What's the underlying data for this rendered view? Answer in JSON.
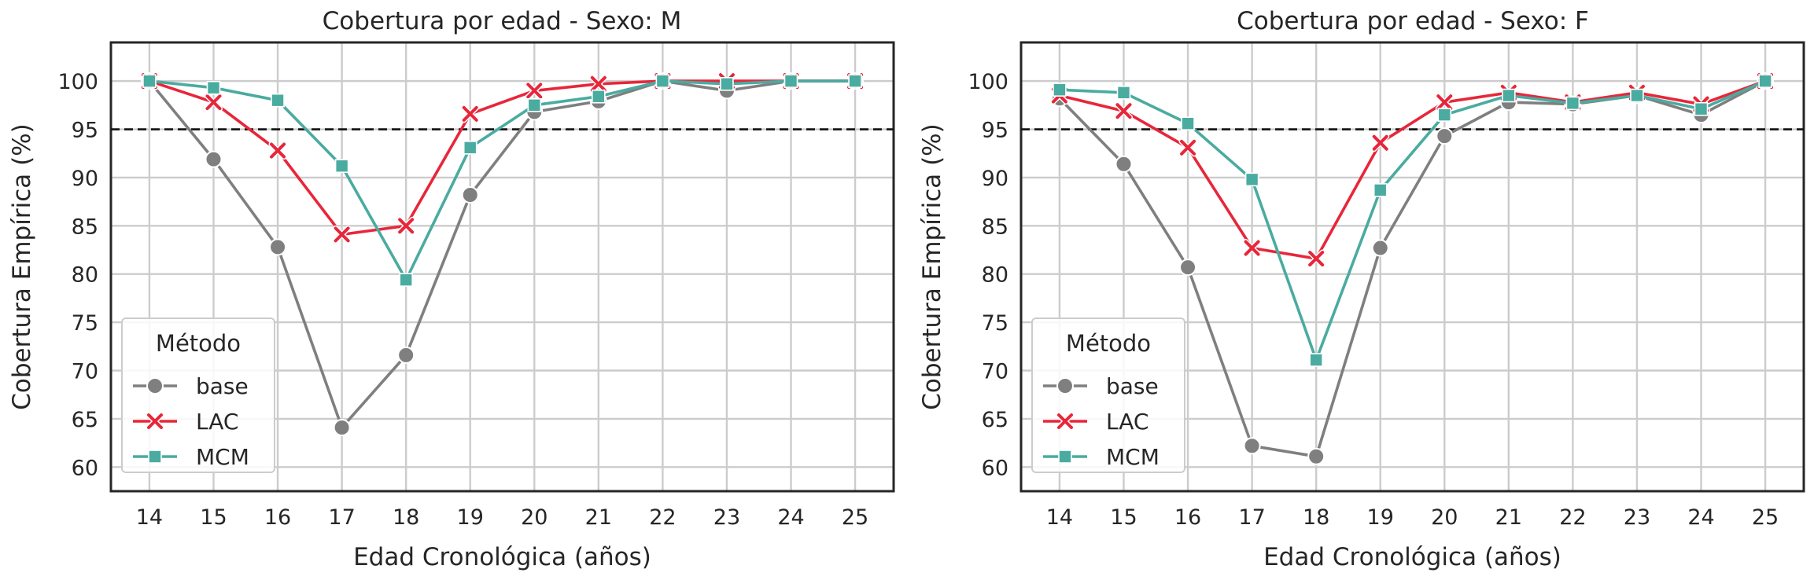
{
  "chart_data": [
    {
      "type": "line",
      "title": "Cobertura por edad - Sexo: M",
      "xlabel": "Edad Cronológica (años)",
      "ylabel": "Cobertura Empírica (%)",
      "x": [
        14,
        15,
        16,
        17,
        18,
        19,
        20,
        21,
        22,
        23,
        24,
        25
      ],
      "xlim": [
        13.4,
        25.6
      ],
      "ylim": [
        57.5,
        104
      ],
      "yticks": [
        60,
        65,
        70,
        75,
        80,
        85,
        90,
        95,
        100
      ],
      "grid": true,
      "reference_line": {
        "y": 95,
        "style": "dashed",
        "color": "#111111"
      },
      "legend": {
        "title": "Método",
        "position": "lower-left"
      },
      "series": [
        {
          "name": "base",
          "color": "#7f7f7f",
          "marker": "circle",
          "values": [
            100,
            91.9,
            82.8,
            64.1,
            71.6,
            88.2,
            96.8,
            97.9,
            100,
            99.0,
            100,
            100
          ]
        },
        {
          "name": "LAC",
          "color": "#e8263a",
          "marker": "x",
          "values": [
            100,
            97.8,
            92.8,
            84.1,
            85.0,
            96.6,
            99.0,
            99.7,
            100,
            100,
            100,
            100
          ]
        },
        {
          "name": "MCM",
          "color": "#4aaba0",
          "marker": "square",
          "values": [
            100,
            99.3,
            98.0,
            91.2,
            79.4,
            93.1,
            97.5,
            98.4,
            100,
            99.7,
            100,
            100
          ]
        }
      ]
    },
    {
      "type": "line",
      "title": "Cobertura por edad - Sexo: F",
      "xlabel": "Edad Cronológica (años)",
      "ylabel": "Cobertura Empírica (%)",
      "x": [
        14,
        15,
        16,
        17,
        18,
        19,
        20,
        21,
        22,
        23,
        24,
        25
      ],
      "xlim": [
        13.4,
        25.6
      ],
      "ylim": [
        57.5,
        104
      ],
      "yticks": [
        60,
        65,
        70,
        75,
        80,
        85,
        90,
        95,
        100
      ],
      "grid": true,
      "reference_line": {
        "y": 95,
        "style": "dashed",
        "color": "#111111"
      },
      "legend": {
        "title": "Método",
        "position": "lower-left"
      },
      "series": [
        {
          "name": "base",
          "color": "#7f7f7f",
          "marker": "circle",
          "values": [
            98.2,
            91.4,
            80.7,
            62.2,
            61.1,
            82.7,
            94.3,
            97.8,
            97.6,
            98.5,
            96.5,
            100
          ]
        },
        {
          "name": "LAC",
          "color": "#e8263a",
          "marker": "x",
          "values": [
            98.5,
            96.9,
            93.1,
            82.7,
            81.6,
            93.6,
            97.8,
            98.8,
            97.8,
            98.8,
            97.6,
            100
          ]
        },
        {
          "name": "MCM",
          "color": "#4aaba0",
          "marker": "square",
          "values": [
            99.1,
            98.8,
            95.6,
            89.8,
            71.1,
            88.7,
            96.5,
            98.5,
            97.7,
            98.5,
            97.1,
            100
          ]
        }
      ]
    }
  ]
}
